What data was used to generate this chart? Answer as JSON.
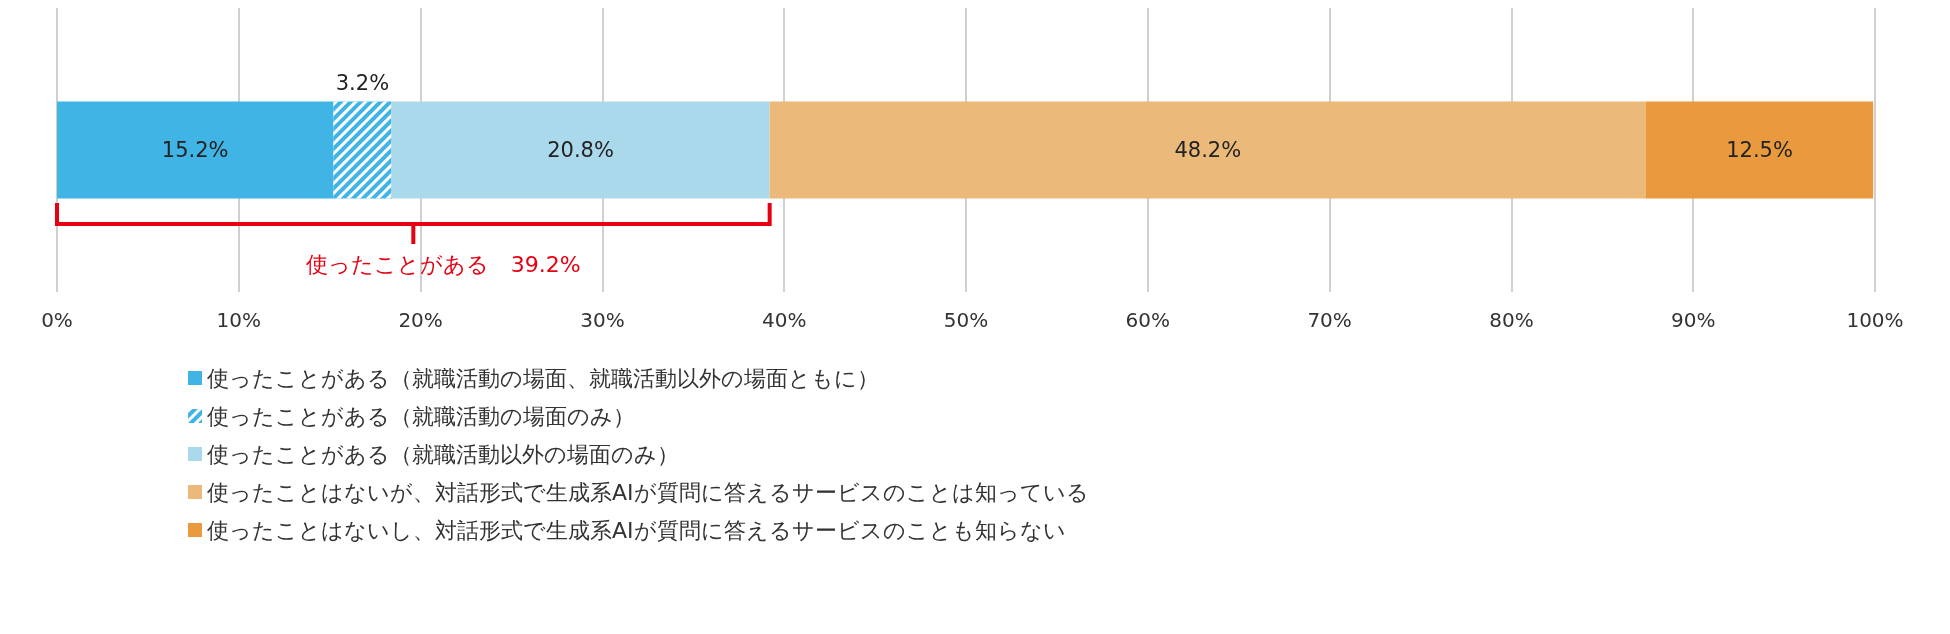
{
  "chart_data": {
    "type": "bar",
    "orientation": "horizontal",
    "stacked": true,
    "categories": [
      null
    ],
    "series": [
      {
        "name": "使ったことがある（就職活動の場面、就職活動以外の場面ともに）",
        "color": "#41b4e6",
        "values": [
          15.2
        ],
        "value_labels": [
          "15.2%"
        ]
      },
      {
        "name": "使ったことがある（就職活動の場面のみ）",
        "color": "#41b4e6",
        "values": [
          3.2
        ],
        "value_labels": [
          "3.2%"
        ]
      },
      {
        "name": "使ったことがある（就職活動以外の場面のみ）",
        "color": "#abd9ec",
        "values": [
          20.8
        ],
        "value_labels": [
          "20.8%"
        ]
      },
      {
        "name": "使ったことはないが、対話形式で生成系AIが質問に答えるサービスのことは知っている",
        "color": "#ebb97a",
        "values": [
          48.2
        ],
        "value_labels": [
          "48.2%"
        ]
      },
      {
        "name": "使ったことはないし、対話形式で生成系AIが質問に答えるサービスのことも知らない",
        "color": "#e99a3f",
        "values": [
          12.5
        ],
        "value_labels": [
          "12.5%"
        ]
      }
    ],
    "xlim": [
      0,
      100
    ],
    "xticks": [
      {
        "value": 0,
        "label": "0%"
      },
      {
        "value": 10,
        "label": "10%"
      },
      {
        "value": 20,
        "label": "20%"
      },
      {
        "value": 30,
        "label": "30%"
      },
      {
        "value": 40,
        "label": "40%"
      },
      {
        "value": 50,
        "label": "50%"
      },
      {
        "value": 60,
        "label": "60%"
      },
      {
        "value": 70,
        "label": "70%"
      },
      {
        "value": 80,
        "label": "80%"
      },
      {
        "value": 90,
        "label": "90%"
      },
      {
        "value": 100,
        "label": "100%"
      }
    ],
    "grid": "x",
    "legend": "bottom",
    "annotations": [
      "使ったことがある　39.2%"
    ]
  }
}
